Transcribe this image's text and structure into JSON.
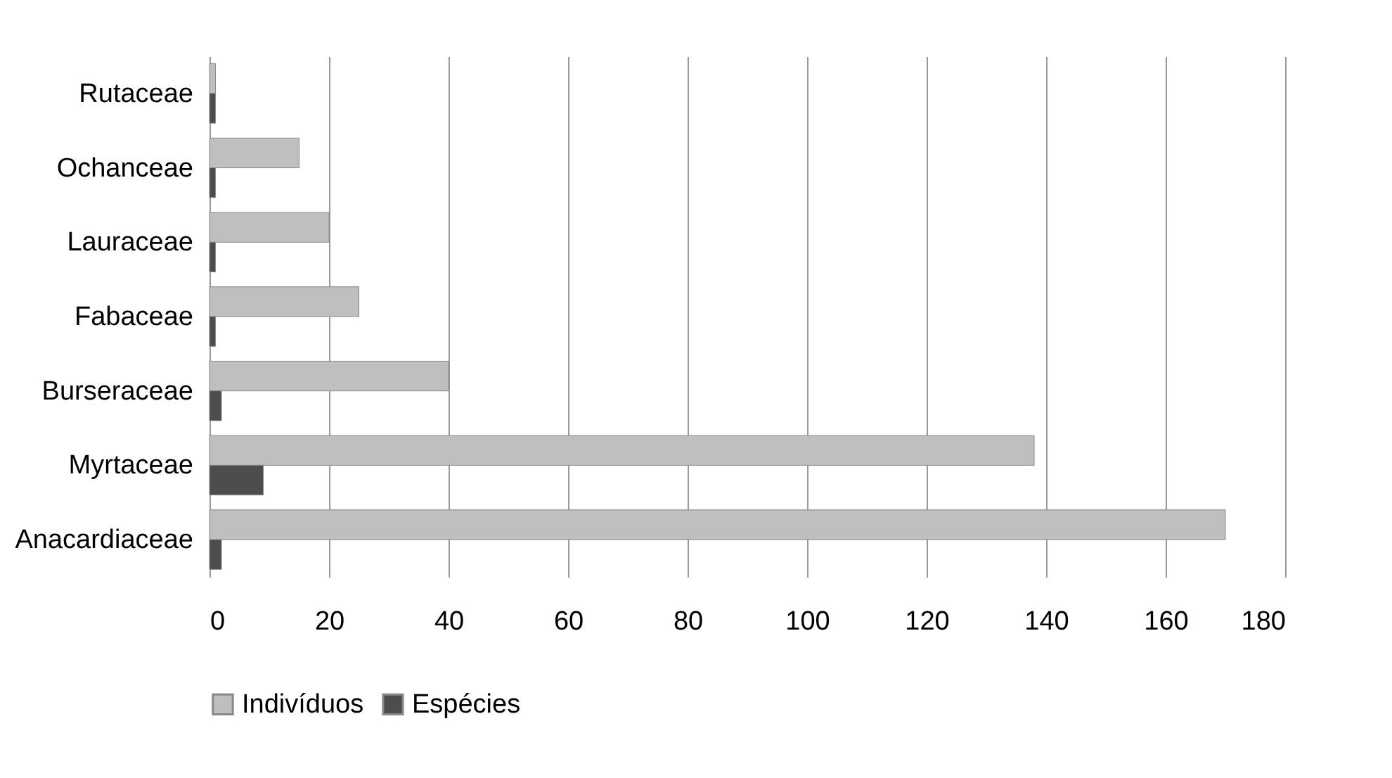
{
  "chart_data": {
    "type": "bar",
    "orientation": "horizontal",
    "categories": [
      "Rutaceae",
      "Ochanceae",
      "Lauraceae",
      "Fabaceae",
      "Burseraceae",
      "Myrtaceae",
      "Anacardiaceae"
    ],
    "series": [
      {
        "name": "Indivíduos",
        "color": "#bfbfbf",
        "values": [
          1,
          15,
          20,
          25,
          40,
          138,
          170
        ]
      },
      {
        "name": "Espécies",
        "color": "#4d4d4d",
        "values": [
          1,
          1,
          1,
          1,
          2,
          9,
          2
        ]
      }
    ],
    "xlim": [
      0,
      180
    ],
    "xticks": [
      0,
      20,
      40,
      60,
      80,
      100,
      120,
      140,
      160,
      180
    ],
    "grid": "x",
    "legend": "bottom"
  }
}
